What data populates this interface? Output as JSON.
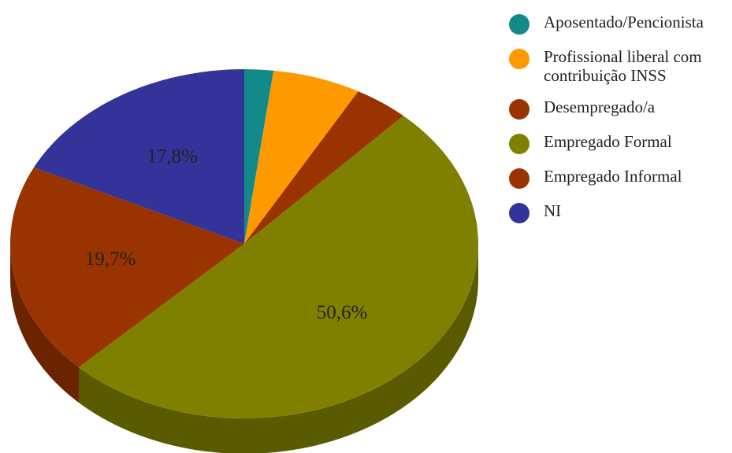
{
  "chart_data": {
    "type": "pie3d",
    "categories": [
      "Aposentado/Pencionista",
      "Profissional liberal com contribuição INSS",
      "Desempregado/a",
      "Empregado Formal",
      "Empregado Informal",
      "NI"
    ],
    "values": [
      2.0,
      6.1,
      3.8,
      50.6,
      19.7,
      17.8
    ],
    "value_labels": [
      null,
      null,
      null,
      "50,6%",
      "19,7%",
      "17,8%"
    ],
    "colors": [
      "#138a8a",
      "#ff9900",
      "#993300",
      "#808000",
      "#993300",
      "#333399"
    ],
    "legend": "right"
  }
}
